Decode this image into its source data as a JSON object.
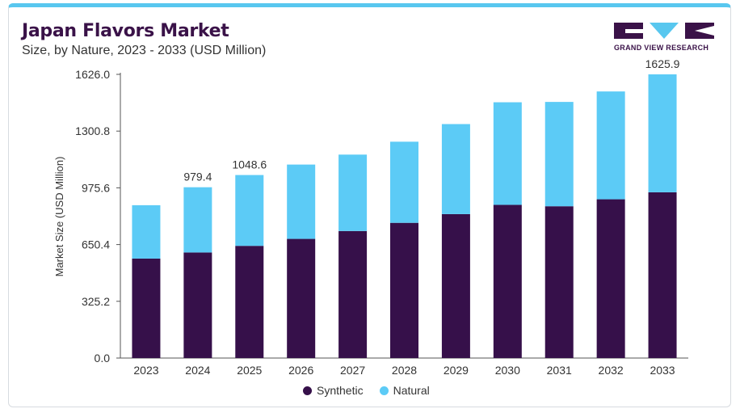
{
  "header": {
    "title": "Japan Flavors Market",
    "subtitle": "Size, by Nature, 2023 - 2033 (USD Million)"
  },
  "logo": {
    "text": "GRAND VIEW RESEARCH"
  },
  "colors": {
    "synthetic": "#36104a",
    "natural": "#5ccbf6",
    "accent": "#58c7ef"
  },
  "chart_data": {
    "type": "bar",
    "stacked": true,
    "categories": [
      "2023",
      "2024",
      "2025",
      "2026",
      "2027",
      "2028",
      "2029",
      "2030",
      "2031",
      "2032",
      "2033"
    ],
    "series": [
      {
        "name": "Synthetic",
        "values": [
          570,
          605,
          643,
          683,
          728,
          775,
          825,
          878,
          870,
          910,
          950
        ]
      },
      {
        "name": "Natural",
        "values": [
          306,
          374,
          406,
          426,
          438,
          465,
          516,
          588,
          598,
          618,
          676
        ]
      }
    ],
    "data_labels": {
      "2024": "979.4",
      "2025": "1048.6",
      "2033": "1625.9"
    },
    "ylabel": "Market Size (USD Million)",
    "yticks": [
      "0.0",
      "325.2",
      "650.4",
      "975.6",
      "1300.8",
      "1626.0"
    ],
    "ylim": [
      0,
      1626.0
    ],
    "grid": false,
    "legend_position": "bottom"
  }
}
